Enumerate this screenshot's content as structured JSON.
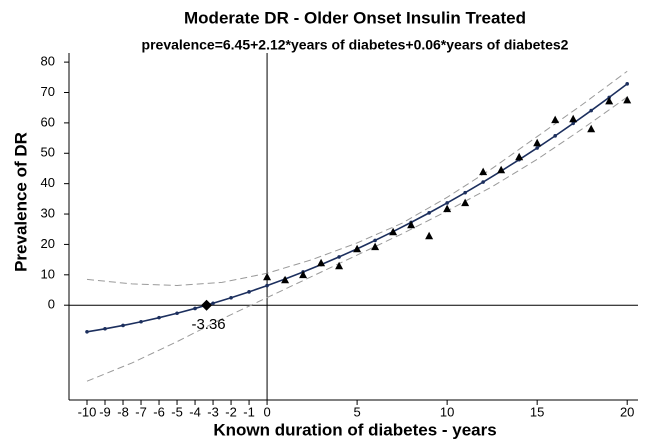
{
  "chart_data": {
    "type": "scatter",
    "title": "Moderate DR - Older Onset Insulin Treated",
    "subtitle": "prevalence=6.45+2.12*years of diabetes+0.06*years of diabetes2",
    "xlabel": "Known duration of diabetes - years",
    "ylabel": "Prevalence of DR",
    "xlim": [
      -11,
      20.6
    ],
    "ylim": [
      -31.2,
      83
    ],
    "xticks": [
      -10,
      -9,
      -8,
      -7,
      -6,
      -5,
      -4,
      -3,
      -2,
      -1,
      0,
      5,
      10,
      15,
      20
    ],
    "yticks": [
      0,
      10,
      20,
      30,
      40,
      50,
      60,
      70,
      80
    ],
    "zero_lines": true,
    "series": [
      {
        "style": "line-dot",
        "color": "#1c2f5e",
        "x": [
          -10,
          -9,
          -8,
          -7,
          -6,
          -5,
          -4,
          -3,
          -2,
          -1,
          0,
          1,
          2,
          3,
          4,
          5,
          6,
          7,
          8,
          9,
          10,
          11,
          12,
          13,
          14,
          15,
          16,
          17,
          18,
          19,
          20
        ],
        "values": [
          -8.75,
          -7.77,
          -6.67,
          -5.45,
          -4.11,
          -2.65,
          -1.07,
          0.63,
          2.45,
          4.39,
          6.45,
          8.63,
          10.93,
          13.35,
          15.89,
          18.55,
          21.33,
          24.23,
          27.25,
          30.39,
          33.65,
          37.03,
          40.53,
          44.15,
          47.89,
          51.75,
          55.73,
          59.83,
          64.05,
          68.39,
          72.85
        ]
      },
      {
        "style": "dashed",
        "color": "#9a9a9a",
        "x": [
          -10,
          -7.5,
          -5,
          -2.5,
          0,
          2.5,
          5,
          7.5,
          10,
          12.5,
          15,
          17.5,
          20
        ],
        "values": [
          8.5,
          7,
          6.5,
          7.5,
          10.5,
          15,
          20.5,
          27,
          35.5,
          45,
          55.5,
          66,
          77
        ]
      },
      {
        "style": "dashed",
        "color": "#9a9a9a",
        "x": [
          -10,
          -7.5,
          -5,
          -2.5,
          0,
          2.5,
          5,
          7.5,
          10,
          12.5,
          15,
          17.5,
          20
        ],
        "values": [
          -25,
          -19,
          -12,
          -4.5,
          2.5,
          9.5,
          16.5,
          23.5,
          31,
          39,
          48,
          58,
          68.5
        ]
      },
      {
        "style": "triangle",
        "color": "#000000",
        "x": [
          0,
          1,
          2,
          3,
          4,
          5,
          6,
          7,
          8,
          9,
          10,
          11,
          12,
          13,
          14,
          15,
          16,
          17,
          18,
          19,
          20
        ],
        "values": [
          9.2,
          8.2,
          9.9,
          13.8,
          12.8,
          18.4,
          19.1,
          24,
          26.3,
          22.7,
          31.6,
          33.6,
          43.8,
          44.4,
          48.7,
          53.3,
          60.9,
          61.2,
          57.9,
          67.1,
          67.4
        ]
      }
    ],
    "annotations": [
      {
        "x": -3.36,
        "y": 0,
        "label": "-3.36"
      }
    ]
  }
}
